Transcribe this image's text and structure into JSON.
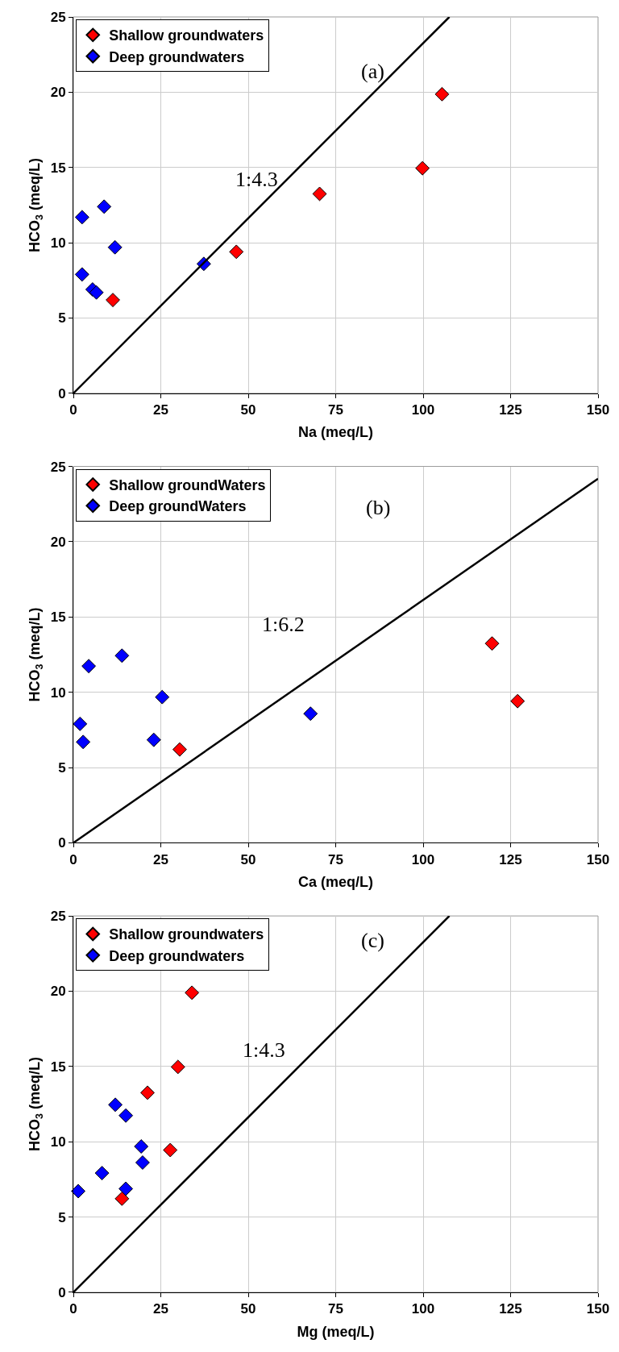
{
  "chart_data": [
    {
      "type": "scatter",
      "xlabel": "Na (meq/L)",
      "ylabel": "HCO$_{3}$ (meq/L)",
      "xlim": [
        0,
        150
      ],
      "xticks": [
        0,
        25,
        50,
        75,
        100,
        125,
        150
      ],
      "ylim": [
        0,
        25
      ],
      "yticks": [
        0,
        5,
        10,
        15,
        20,
        25
      ],
      "grid": true,
      "legend": "top left",
      "marker": "diamond",
      "annotations": [
        "(a)",
        "1:4.3"
      ],
      "series": [
        {
          "name": "Shallow groundwaters",
          "color": "#ff0000",
          "x": [
            11.3,
            46.6,
            70.4,
            99.8,
            105.4
          ],
          "values": [
            6.2,
            9.4,
            13.25,
            14.95,
            19.87
          ]
        },
        {
          "name": "Deep groundwaters",
          "color": "#0000ff",
          "x": [
            2.5,
            8.8,
            11.9,
            2.5,
            5.5,
            6.6,
            37.3
          ],
          "values": [
            11.7,
            12.4,
            9.7,
            7.9,
            6.9,
            6.7,
            8.6
          ]
        },
        {
          "type": "line",
          "color": "#000000",
          "marker": "none",
          "x": [
            0,
            107.5
          ],
          "values": [
            0,
            25
          ]
        }
      ]
    },
    {
      "type": "scatter",
      "xlabel": "Ca (meq/L)",
      "ylabel": "HCO$_{3}$ (meq/L)",
      "xlim": [
        0,
        150
      ],
      "xticks": [
        0,
        25,
        50,
        75,
        100,
        125,
        150
      ],
      "ylim": [
        0,
        25
      ],
      "yticks": [
        0,
        5,
        10,
        15,
        20,
        25
      ],
      "grid": true,
      "legend": "top left",
      "marker": "diamond",
      "annotations": [
        "(b)",
        "1:6.2"
      ],
      "series": [
        {
          "name": "Shallow groundWaters",
          "color": "#ff0000",
          "x": [
            30.4,
            119.7,
            127.0
          ],
          "values": [
            6.2,
            13.24,
            9.41
          ]
        },
        {
          "name": "Deep groundWaters",
          "color": "#0000ff",
          "x": [
            1.9,
            2.8,
            4.4,
            13.9,
            25.4,
            23.0,
            67.8
          ],
          "values": [
            7.9,
            6.7,
            11.74,
            12.43,
            9.68,
            6.84,
            8.58
          ]
        },
        {
          "type": "line",
          "color": "#000000",
          "marker": "none",
          "x": [
            0,
            150
          ],
          "values": [
            0,
            24.19
          ]
        }
      ]
    },
    {
      "type": "scatter",
      "xlabel": "Mg (meq/L)",
      "ylabel": "HCO$_{3}$ (meq/L)",
      "xlim": [
        0,
        150
      ],
      "xticks": [
        0,
        25,
        50,
        75,
        100,
        125,
        150
      ],
      "ylim": [
        0,
        25
      ],
      "yticks": [
        0,
        5,
        10,
        15,
        20,
        25
      ],
      "grid": true,
      "legend": "top left",
      "marker": "diamond",
      "annotations": [
        "(c)",
        "1:4.3"
      ],
      "series": [
        {
          "name": "Shallow groundwaters",
          "color": "#ff0000",
          "x": [
            13.9,
            27.7,
            21.2,
            29.9,
            33.9
          ],
          "values": [
            6.22,
            9.45,
            13.26,
            14.97,
            19.9
          ]
        },
        {
          "name": "Deep groundwaters",
          "color": "#0000ff",
          "x": [
            1.4,
            8.2,
            12.0,
            15.0,
            19.4,
            19.8,
            15.0
          ],
          "values": [
            6.72,
            7.92,
            12.46,
            11.74,
            9.69,
            8.62,
            6.88
          ]
        },
        {
          "type": "line",
          "color": "#000000",
          "marker": "none",
          "x": [
            0,
            107.5
          ],
          "values": [
            0,
            25
          ]
        }
      ]
    }
  ]
}
